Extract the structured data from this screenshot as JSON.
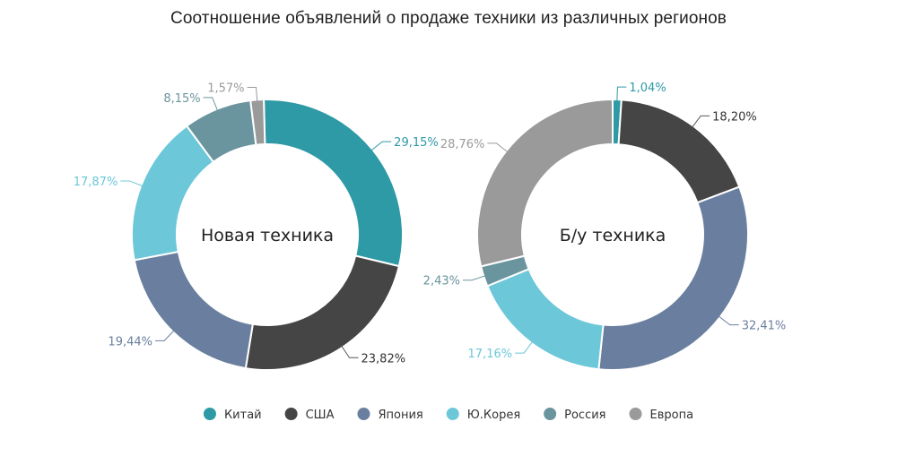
{
  "chart_data": {
    "type": "pie",
    "title": "Соотношение объявлений о продаже техники из различных регионов",
    "categories": [
      "Китай",
      "США",
      "Япония",
      "Ю.Корея",
      "Россия",
      "Европа"
    ],
    "colors": [
      "#2e9aa6",
      "#454545",
      "#6a7f9f",
      "#6cc7d8",
      "#6a959e",
      "#9a9a9a"
    ],
    "series": [
      {
        "name": "Новая техника",
        "values": [
          29.15,
          23.82,
          19.44,
          17.87,
          8.15,
          1.57
        ],
        "labels": [
          "29,15%",
          "23,82%",
          "19,44%",
          "17,87%",
          "8,15%",
          "1,57%"
        ]
      },
      {
        "name": "Б/у техника",
        "values": [
          1.04,
          18.2,
          32.41,
          17.16,
          2.43,
          28.76
        ],
        "labels": [
          "1,04%",
          "18,20%",
          "32,41%",
          "17,16%",
          "2,43%",
          "28,76%"
        ]
      }
    ],
    "legend": "bottom-center"
  }
}
